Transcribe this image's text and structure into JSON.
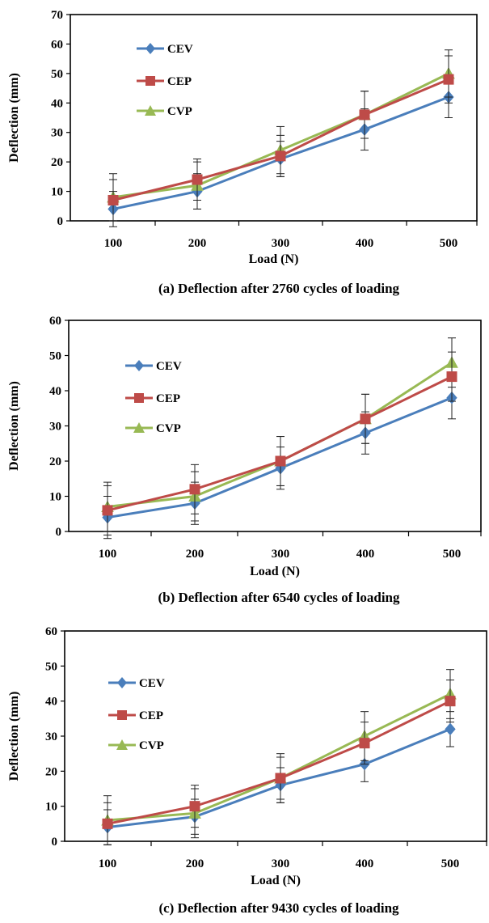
{
  "colors": {
    "CEV": "#4a7ebb",
    "CEP": "#be4b48",
    "CVP": "#98b954"
  },
  "chart_data": [
    {
      "type": "line",
      "caption": "(a) Deflection after 2760 cycles of loading",
      "xlabel": "Load (N)",
      "ylabel": "Deflection (mm)",
      "categories": [
        "100",
        "200",
        "300",
        "400",
        "500"
      ],
      "ylim": [
        0,
        70
      ],
      "yticks": [
        "0",
        "10",
        "20",
        "30",
        "40",
        "50",
        "60",
        "70"
      ],
      "grid": false,
      "legend": "upper-left",
      "series": [
        {
          "name": "CEV",
          "values": [
            4,
            10,
            21,
            31,
            42
          ],
          "err": [
            6,
            6,
            6,
            7,
            7
          ]
        },
        {
          "name": "CEP",
          "values": [
            7,
            14,
            22,
            36,
            48
          ],
          "err": [
            7,
            7,
            7,
            8,
            8
          ]
        },
        {
          "name": "CVP",
          "values": [
            8,
            12,
            24,
            36,
            50
          ],
          "err": [
            8,
            8,
            8,
            8,
            8
          ]
        }
      ]
    },
    {
      "type": "line",
      "caption": "(b) Deflection after 6540 cycles of loading",
      "xlabel": "Load (N)",
      "ylabel": "Deflection (mm)",
      "categories": [
        "100",
        "200",
        "300",
        "400",
        "500"
      ],
      "ylim": [
        0,
        60
      ],
      "yticks": [
        "0",
        "10",
        "20",
        "30",
        "40",
        "50",
        "60"
      ],
      "grid": false,
      "legend": "upper-left",
      "series": [
        {
          "name": "CEV",
          "values": [
            4,
            8,
            18,
            28,
            38
          ],
          "err": [
            6,
            6,
            6,
            6,
            6
          ]
        },
        {
          "name": "CEP",
          "values": [
            6,
            12,
            20,
            32,
            44
          ],
          "err": [
            7,
            7,
            7,
            7,
            7
          ]
        },
        {
          "name": "CVP",
          "values": [
            7,
            10,
            20,
            32,
            48
          ],
          "err": [
            7,
            7,
            7,
            7,
            7
          ]
        }
      ]
    },
    {
      "type": "line",
      "caption": "(c) Deflection after 9430 cycles of loading",
      "xlabel": "Load (N)",
      "ylabel": "Deflection (mm)",
      "categories": [
        "100",
        "200",
        "300",
        "400",
        "500"
      ],
      "ylim": [
        0,
        60
      ],
      "yticks": [
        "0",
        "10",
        "20",
        "30",
        "40",
        "50",
        "60"
      ],
      "grid": false,
      "legend": "upper-left",
      "series": [
        {
          "name": "CEV",
          "values": [
            4,
            7,
            16,
            22,
            32
          ],
          "err": [
            5,
            5,
            5,
            5,
            5
          ]
        },
        {
          "name": "CEP",
          "values": [
            5,
            10,
            18,
            28,
            40
          ],
          "err": [
            6,
            6,
            6,
            6,
            6
          ]
        },
        {
          "name": "CVP",
          "values": [
            6,
            8,
            18,
            30,
            42
          ],
          "err": [
            7,
            7,
            7,
            7,
            7
          ]
        }
      ]
    }
  ]
}
